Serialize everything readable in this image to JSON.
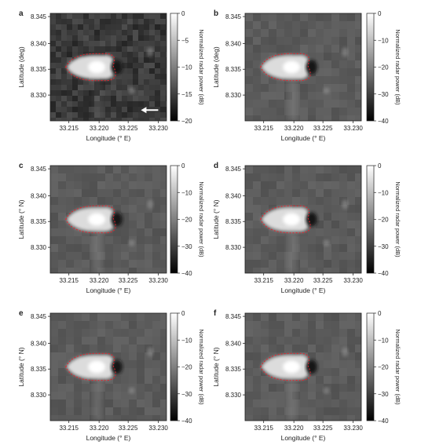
{
  "chart_data": [
    {
      "type": "heatmap",
      "panel_label": "a",
      "xlabel": "Longitude (° E)",
      "ylabel": "Latitude (deg)",
      "x_ticks": [
        "33.215",
        "33.220",
        "33.225",
        "33.230"
      ],
      "y_ticks": [
        "8.345",
        "8.340",
        "8.335",
        "8.330"
      ],
      "colorbar_label": "Normalized radar power (dB)",
      "colorbar_ticks": [
        "0",
        "−5",
        "−10",
        "−15",
        "−20"
      ],
      "colorbar_range": [
        -20,
        0
      ],
      "has_arrow": true
    },
    {
      "type": "heatmap",
      "panel_label": "b",
      "xlabel": "Longitude (° E)",
      "ylabel": "Latitude (deg)",
      "x_ticks": [
        "33.215",
        "33.220",
        "33.225",
        "33.230"
      ],
      "y_ticks": [
        "8.345",
        "8.340",
        "8.335",
        "8.330"
      ],
      "colorbar_label": "Normalized radar power (dB)",
      "colorbar_ticks": [
        "0",
        "−10",
        "−20",
        "−30",
        "−40"
      ],
      "colorbar_range": [
        -40,
        0
      ],
      "has_arrow": false
    },
    {
      "type": "heatmap",
      "panel_label": "c",
      "xlabel": "Longitude (° E)",
      "ylabel": "Latitude (° N)",
      "x_ticks": [
        "33.215",
        "33.220",
        "33.225",
        "33.230"
      ],
      "y_ticks": [
        "8.345",
        "8.340",
        "8.335",
        "8.330"
      ],
      "colorbar_label": "Normalized radar power (dB)",
      "colorbar_ticks": [
        "0",
        "−10",
        "−20",
        "−30",
        "−40"
      ],
      "colorbar_range": [
        -40,
        0
      ],
      "has_arrow": false
    },
    {
      "type": "heatmap",
      "panel_label": "d",
      "xlabel": "Longitude (° E)",
      "ylabel": "Latitude (° N)",
      "x_ticks": [
        "33.215",
        "33.220",
        "33.225",
        "33.230"
      ],
      "y_ticks": [
        "8.345",
        "8.340",
        "8.335",
        "8.330"
      ],
      "colorbar_label": "Normalized radar power (dB)",
      "colorbar_ticks": [
        "0",
        "−10",
        "−20",
        "−30",
        "−40"
      ],
      "colorbar_range": [
        -40,
        0
      ],
      "has_arrow": false
    },
    {
      "type": "heatmap",
      "panel_label": "e",
      "xlabel": "Longitude (° E)",
      "ylabel": "Latitude (° N)",
      "x_ticks": [
        "33.215",
        "33.220",
        "33.225",
        "33.230"
      ],
      "y_ticks": [
        "8.345",
        "8.340",
        "8.335",
        "8.330"
      ],
      "colorbar_label": "Normalized radar power (dB)",
      "colorbar_ticks": [
        "0",
        "−10",
        "−20",
        "−30",
        "−40"
      ],
      "colorbar_range": [
        -40,
        0
      ],
      "has_arrow": false
    },
    {
      "type": "heatmap",
      "panel_label": "f",
      "xlabel": "Longitude (° E)",
      "ylabel": "Latitude (° N)",
      "x_ticks": [
        "33.215",
        "33.220",
        "33.225",
        "33.230"
      ],
      "y_ticks": [
        "8.345",
        "8.340",
        "8.335",
        "8.330"
      ],
      "colorbar_label": "Normalized radar power (dB)",
      "colorbar_ticks": [
        "0",
        "−10",
        "−20",
        "−30",
        "−40"
      ],
      "colorbar_range": [
        -40,
        0
      ],
      "has_arrow": false
    }
  ],
  "colors": {
    "outline": "#e8202a",
    "background_gray": "#5a5a5a",
    "bright": "#ffffff",
    "shadow": "#141414"
  }
}
